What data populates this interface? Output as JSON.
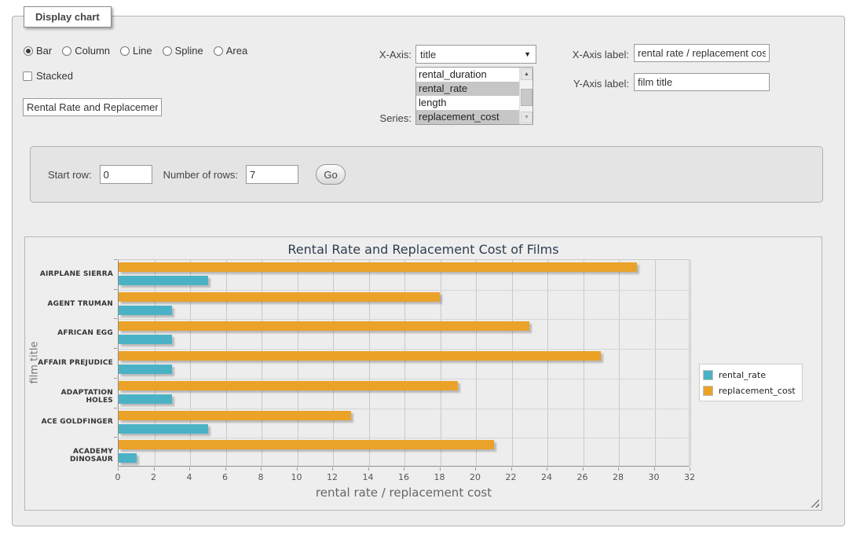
{
  "fieldset": {
    "legend": "Display chart"
  },
  "controls": {
    "chart_types": {
      "options": [
        "Bar",
        "Column",
        "Line",
        "Spline",
        "Area"
      ],
      "selected": "Bar"
    },
    "stacked": {
      "label": "Stacked",
      "checked": false
    },
    "chart_title_input": {
      "value": "Rental Rate and Replacemer"
    },
    "x_axis": {
      "label": "X-Axis:",
      "selected": "title"
    },
    "series": {
      "label": "Series:",
      "options": [
        "rental_duration",
        "rental_rate",
        "length",
        "replacement_cost"
      ],
      "selected": [
        "rental_rate",
        "replacement_cost"
      ]
    },
    "x_axis_label_field": {
      "label": "X-Axis label:",
      "value": "rental rate / replacement cost"
    },
    "y_axis_label_field": {
      "label": "Y-Axis label:",
      "value": "film title"
    }
  },
  "row_controls": {
    "start_row_label": "Start row:",
    "start_row_value": "0",
    "rows_label": "Number of rows:",
    "rows_value": "7",
    "go_label": "Go"
  },
  "chart_data": {
    "type": "bar",
    "orientation": "horizontal",
    "title": "Rental Rate and Replacement Cost of Films",
    "categories": [
      "AIRPLANE SIERRA",
      "AGENT TRUMAN",
      "AFRICAN EGG",
      "AFFAIR PREJUDICE",
      "ADAPTATION HOLES",
      "ACE GOLDFINGER",
      "ACADEMY DINOSAUR"
    ],
    "series": [
      {
        "name": "rental_rate",
        "color": "#4bb2c5",
        "values": [
          4.99,
          2.99,
          2.99,
          2.99,
          2.99,
          4.99,
          0.99
        ]
      },
      {
        "name": "replacement_cost",
        "color": "#eaa228",
        "values": [
          28.99,
          17.99,
          22.99,
          26.99,
          18.99,
          12.99,
          20.99
        ]
      }
    ],
    "xlabel": "rental rate / replacement cost",
    "ylabel": "film title",
    "xlim": [
      0,
      32
    ],
    "xtick_step": 2,
    "grid": true,
    "legend_position": "right"
  }
}
